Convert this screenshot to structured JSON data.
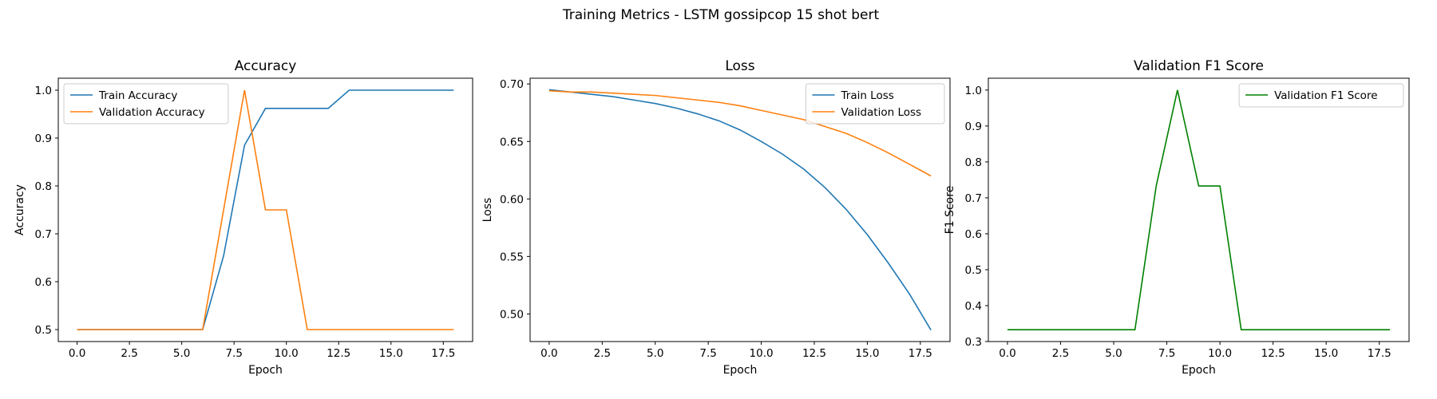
{
  "suptitle": "Training Metrics - LSTM gossipcop 15 shot bert",
  "chart_data": [
    {
      "type": "line",
      "title": "Accuracy",
      "xlabel": "Epoch",
      "ylabel": "Accuracy",
      "xlim": [
        -0.9,
        18.9
      ],
      "ylim": [
        0.475,
        1.025
      ],
      "xticks": [
        0.0,
        2.5,
        5.0,
        7.5,
        10.0,
        12.5,
        15.0,
        17.5
      ],
      "xtick_labels": [
        "0.0",
        "2.5",
        "5.0",
        "7.5",
        "10.0",
        "12.5",
        "15.0",
        "17.5"
      ],
      "yticks": [
        0.5,
        0.6,
        0.7,
        0.8,
        0.9,
        1.0
      ],
      "ytick_labels": [
        "0.5",
        "0.6",
        "0.7",
        "0.8",
        "0.9",
        "1.0"
      ],
      "legend_loc": "upper-left",
      "x": [
        0,
        1,
        2,
        3,
        4,
        5,
        6,
        7,
        8,
        9,
        10,
        11,
        12,
        13,
        14,
        15,
        16,
        17,
        18
      ],
      "series": [
        {
          "name": "Train Accuracy",
          "color": "#1f77b4",
          "values": [
            0.5,
            0.5,
            0.5,
            0.5,
            0.5,
            0.5,
            0.5,
            0.654,
            0.885,
            0.962,
            0.962,
            0.962,
            0.962,
            1.0,
            1.0,
            1.0,
            1.0,
            1.0,
            1.0
          ]
        },
        {
          "name": "Validation Accuracy",
          "color": "#ff7f0e",
          "values": [
            0.5,
            0.5,
            0.5,
            0.5,
            0.5,
            0.5,
            0.5,
            0.75,
            1.0,
            0.75,
            0.75,
            0.5,
            0.5,
            0.5,
            0.5,
            0.5,
            0.5,
            0.5,
            0.5
          ]
        }
      ]
    },
    {
      "type": "line",
      "title": "Loss",
      "xlabel": "Epoch",
      "ylabel": "Loss",
      "xlim": [
        -0.9,
        18.9
      ],
      "ylim": [
        0.476,
        0.705
      ],
      "xticks": [
        0.0,
        2.5,
        5.0,
        7.5,
        10.0,
        12.5,
        15.0,
        17.5
      ],
      "xtick_labels": [
        "0.0",
        "2.5",
        "5.0",
        "7.5",
        "10.0",
        "12.5",
        "15.0",
        "17.5"
      ],
      "yticks": [
        0.5,
        0.55,
        0.6,
        0.65,
        0.7
      ],
      "ytick_labels": [
        "0.50",
        "0.55",
        "0.60",
        "0.65",
        "0.70"
      ],
      "legend_loc": "upper-right",
      "x": [
        0,
        1,
        2,
        3,
        4,
        5,
        6,
        7,
        8,
        9,
        10,
        11,
        12,
        13,
        14,
        15,
        16,
        17,
        18
      ],
      "series": [
        {
          "name": "Train Loss",
          "color": "#1f77b4",
          "values": [
            0.695,
            0.693,
            0.691,
            0.689,
            0.686,
            0.683,
            0.679,
            0.674,
            0.668,
            0.66,
            0.65,
            0.639,
            0.626,
            0.61,
            0.591,
            0.569,
            0.544,
            0.517,
            0.486
          ]
        },
        {
          "name": "Validation Loss",
          "color": "#ff7f0e",
          "values": [
            0.694,
            0.693,
            0.693,
            0.692,
            0.691,
            0.69,
            0.688,
            0.686,
            0.684,
            0.681,
            0.677,
            0.673,
            0.669,
            0.663,
            0.657,
            0.649,
            0.64,
            0.63,
            0.62
          ]
        }
      ]
    },
    {
      "type": "line",
      "title": "Validation F1 Score",
      "xlabel": "Epoch",
      "ylabel": "F1 Score",
      "xlim": [
        -0.9,
        18.9
      ],
      "ylim": [
        0.3,
        1.033
      ],
      "xticks": [
        0.0,
        2.5,
        5.0,
        7.5,
        10.0,
        12.5,
        15.0,
        17.5
      ],
      "xtick_labels": [
        "0.0",
        "2.5",
        "5.0",
        "7.5",
        "10.0",
        "12.5",
        "15.0",
        "17.5"
      ],
      "yticks": [
        0.3,
        0.4,
        0.5,
        0.6,
        0.7,
        0.8,
        0.9,
        1.0
      ],
      "ytick_labels": [
        "0.3",
        "0.4",
        "0.5",
        "0.6",
        "0.7",
        "0.8",
        "0.9",
        "1.0"
      ],
      "legend_loc": "upper-right",
      "x": [
        0,
        1,
        2,
        3,
        4,
        5,
        6,
        7,
        8,
        9,
        10,
        11,
        12,
        13,
        14,
        15,
        16,
        17,
        18
      ],
      "series": [
        {
          "name": "Validation F1 Score",
          "color": "#008000",
          "values": [
            0.333,
            0.333,
            0.333,
            0.333,
            0.333,
            0.333,
            0.333,
            0.733,
            1.0,
            0.733,
            0.733,
            0.333,
            0.333,
            0.333,
            0.333,
            0.333,
            0.333,
            0.333,
            0.333
          ]
        }
      ]
    }
  ]
}
